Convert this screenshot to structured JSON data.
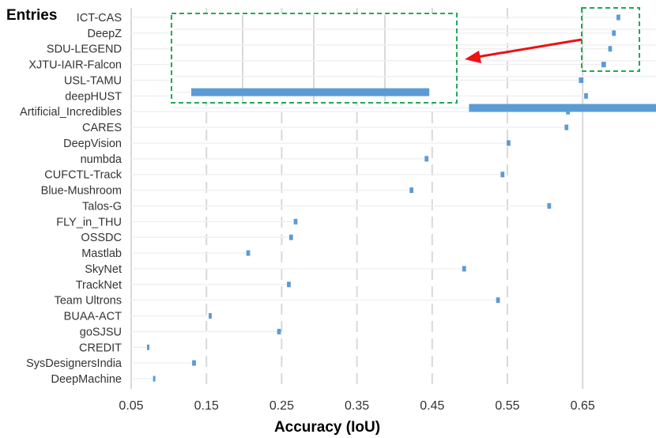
{
  "chart_data": {
    "type": "bar",
    "subtype": "floating-range",
    "ylabel": "Entries",
    "xlabel": "Accuracy (IoU)",
    "xlim": [
      0.05,
      0.72
    ],
    "xticks": [
      "0.05",
      "0.15",
      "0.25",
      "0.35",
      "0.45",
      "0.55",
      "0.65"
    ],
    "grid": "vertical",
    "bar_color": "#5b9bd5",
    "zoom_box_color": "#22aa55",
    "arrow_color": "#ee1111",
    "categories": [
      "ICT-CAS",
      "DeepZ",
      "SDU-LEGEND",
      "XJTU-IAIR-Falcon",
      "USL-TAMU",
      "deepHUST",
      "Artificial_Incredibles",
      "CARES",
      "DeepVision",
      "numbda",
      "CUFCTL-Track",
      "Blue-Mushroom",
      "Talos-G",
      "FLY_in_THU",
      "OSSDC",
      "Mastlab",
      "SkyNet",
      "TrackNet",
      "Team Ultrons",
      "BUAA-ACT",
      "goSJSU",
      "CREDIT",
      "SysDesignersIndia",
      "DeepMachine"
    ],
    "ranges": [
      [
        0.695,
        0.7
      ],
      [
        0.689,
        0.694
      ],
      [
        0.684,
        0.689
      ],
      [
        0.675,
        0.681
      ],
      [
        0.645,
        0.651
      ],
      [
        0.652,
        0.657
      ],
      [
        0.628,
        0.633
      ],
      [
        0.626,
        0.631
      ],
      [
        0.549,
        0.554
      ],
      [
        0.44,
        0.445
      ],
      [
        0.541,
        0.546
      ],
      [
        0.42,
        0.425
      ],
      [
        0.603,
        0.608
      ],
      [
        0.266,
        0.271
      ],
      [
        0.26,
        0.265
      ],
      [
        0.203,
        0.208
      ],
      [
        0.49,
        0.495
      ],
      [
        0.257,
        0.262
      ],
      [
        0.535,
        0.54
      ],
      [
        0.153,
        0.157
      ],
      [
        0.244,
        0.249
      ],
      [
        0.071,
        0.074
      ],
      [
        0.131,
        0.136
      ],
      [
        0.079,
        0.082
      ]
    ],
    "zoom_inset": {
      "categories": [
        "ICT-CAS",
        "DeepZ",
        "SDU-LEGEND",
        "XJTU-IAIR-Falcon",
        "USL-TAMU",
        "deepHUST"
      ],
      "ranges": [
        [
          0.695,
          0.7
        ],
        [
          0.689,
          0.694
        ],
        [
          0.684,
          0.689
        ],
        [
          0.675,
          0.681
        ],
        [
          0.645,
          0.651
        ],
        [
          0.652,
          0.657
        ]
      ]
    }
  }
}
